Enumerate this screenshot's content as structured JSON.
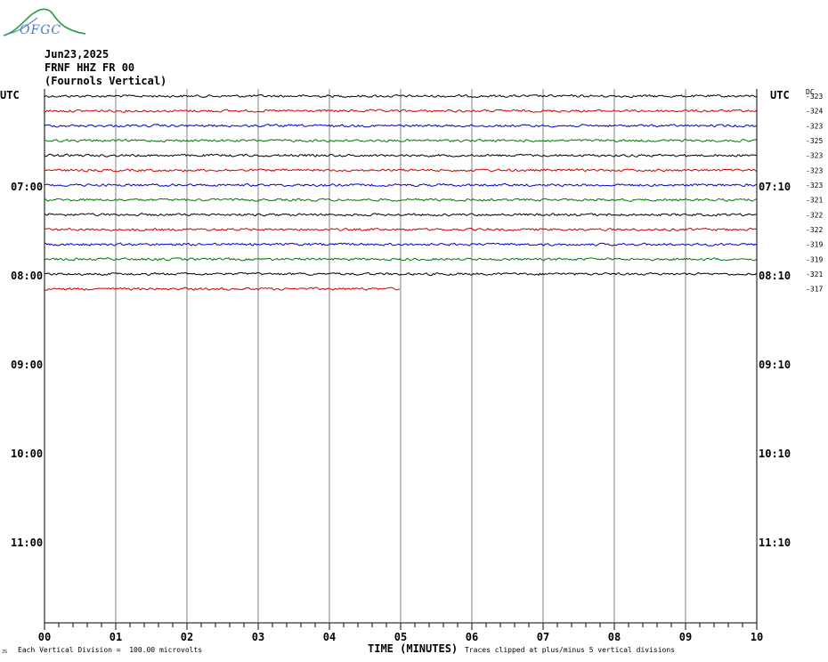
{
  "logo": {
    "text": "OFGC"
  },
  "header": {
    "date": "Jun23,2025",
    "station": "FRNF HHZ FR 00",
    "location": "(Fournols Vertical)"
  },
  "left_axis_label": "UTC",
  "right_axis_label": "UTC",
  "dc_label": "DC",
  "left_hours": [
    "07:00",
    "08:00",
    "09:00",
    "10:00",
    "11:00"
  ],
  "right_hours": [
    "07:10",
    "08:10",
    "09:10",
    "10:10",
    "11:10"
  ],
  "footer": {
    "xlabel": "TIME (MINUTES)",
    "division_note": "Each Vertical Division =  100.00 microvolts",
    "clip_note": "Traces clipped at plus/minus 5 vertical divisions",
    "corner_mark": "JS"
  },
  "colors": {
    "trace_cycle": [
      "#000000",
      "#cc0000",
      "#0000cc",
      "#007700"
    ],
    "grid": "#808080",
    "logo_green": "#2a9a3a",
    "logo_blue": "#4a78c8"
  },
  "chart_data": {
    "type": "line",
    "title": "Jun23,2025",
    "xlabel": "TIME (MINUTES)",
    "ylabel": "UTC",
    "x_ticks": [
      "00",
      "01",
      "02",
      "03",
      "04",
      "05",
      "06",
      "07",
      "08",
      "09",
      "10"
    ],
    "xlim": [
      0,
      10
    ],
    "minutes_per_trace": 10,
    "traces_per_hour": 6,
    "first_trace_time": "06:20",
    "end_time": "12:00",
    "dc_offsets": [
      -323,
      -324,
      -323,
      -325,
      -323,
      -323,
      -323,
      -321,
      -322,
      -322,
      -319,
      -319,
      -321,
      -317
    ],
    "trace_lengths_min": [
      10,
      10,
      10,
      10,
      10,
      10,
      10,
      10,
      10,
      10,
      10,
      10,
      10,
      5
    ],
    "grid": true,
    "clip_divisions": 5
  }
}
